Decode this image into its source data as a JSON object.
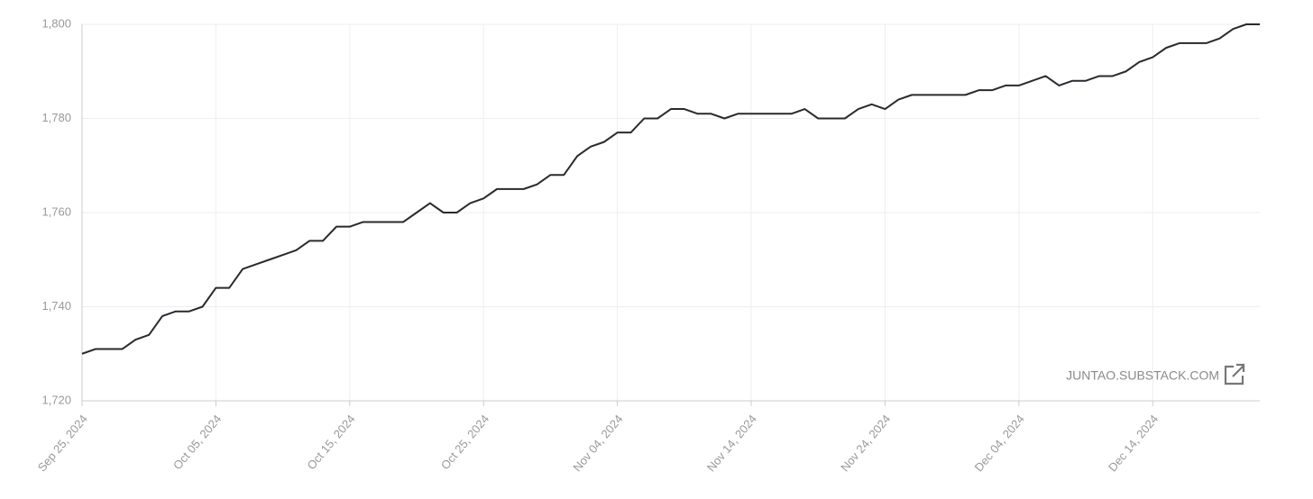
{
  "chart_data": {
    "type": "line",
    "x": [
      "2024-09-25",
      "2024-09-26",
      "2024-09-27",
      "2024-09-28",
      "2024-09-29",
      "2024-09-30",
      "2024-10-01",
      "2024-10-02",
      "2024-10-03",
      "2024-10-04",
      "2024-10-05",
      "2024-10-06",
      "2024-10-07",
      "2024-10-08",
      "2024-10-09",
      "2024-10-10",
      "2024-10-11",
      "2024-10-12",
      "2024-10-13",
      "2024-10-14",
      "2024-10-15",
      "2024-10-16",
      "2024-10-17",
      "2024-10-18",
      "2024-10-19",
      "2024-10-20",
      "2024-10-21",
      "2024-10-22",
      "2024-10-23",
      "2024-10-24",
      "2024-10-25",
      "2024-10-26",
      "2024-10-27",
      "2024-10-28",
      "2024-10-29",
      "2024-10-30",
      "2024-10-31",
      "2024-11-01",
      "2024-11-02",
      "2024-11-03",
      "2024-11-04",
      "2024-11-05",
      "2024-11-06",
      "2024-11-07",
      "2024-11-08",
      "2024-11-09",
      "2024-11-10",
      "2024-11-11",
      "2024-11-12",
      "2024-11-13",
      "2024-11-14",
      "2024-11-15",
      "2024-11-16",
      "2024-11-17",
      "2024-11-18",
      "2024-11-19",
      "2024-11-20",
      "2024-11-21",
      "2024-11-22",
      "2024-11-23",
      "2024-11-24",
      "2024-11-25",
      "2024-11-26",
      "2024-11-27",
      "2024-11-28",
      "2024-11-29",
      "2024-11-30",
      "2024-12-01",
      "2024-12-02",
      "2024-12-03",
      "2024-12-04",
      "2024-12-05",
      "2024-12-06",
      "2024-12-07",
      "2024-12-08",
      "2024-12-09",
      "2024-12-10",
      "2024-12-11",
      "2024-12-12",
      "2024-12-13",
      "2024-12-14",
      "2024-12-15",
      "2024-12-16",
      "2024-12-17",
      "2024-12-18",
      "2024-12-19",
      "2024-12-20",
      "2024-12-21",
      "2024-12-22"
    ],
    "series": [
      {
        "color": "#2a2a2e",
        "values": [
          1730,
          1731,
          1731,
          1731,
          1733,
          1734,
          1738,
          1739,
          1739,
          1740,
          1744,
          1744,
          1748,
          1749,
          1750,
          1751,
          1752,
          1754,
          1754,
          1757,
          1757,
          1758,
          1758,
          1758,
          1758,
          1760,
          1762,
          1760,
          1760,
          1762,
          1763,
          1765,
          1765,
          1765,
          1766,
          1768,
          1768,
          1772,
          1774,
          1775,
          1777,
          1777,
          1780,
          1780,
          1782,
          1782,
          1781,
          1781,
          1780,
          1781,
          1781,
          1781,
          1781,
          1781,
          1782,
          1780,
          1780,
          1780,
          1782,
          1783,
          1782,
          1784,
          1785,
          1785,
          1785,
          1785,
          1785,
          1786,
          1786,
          1787,
          1787,
          1788,
          1789,
          1787,
          1788,
          1788,
          1789,
          1789,
          1790,
          1792,
          1793,
          1795,
          1796,
          1796,
          1796,
          1797,
          1799,
          1800,
          1800
        ]
      }
    ],
    "xlim": [
      "2024-09-25",
      "2024-12-22"
    ],
    "xticks": [
      {
        "value": "2024-09-25",
        "label": "Sep 25, 2024"
      },
      {
        "value": "2024-10-05",
        "label": "Oct 05, 2024"
      },
      {
        "value": "2024-10-15",
        "label": "Oct 15, 2024"
      },
      {
        "value": "2024-10-25",
        "label": "Oct 25, 2024"
      },
      {
        "value": "2024-11-04",
        "label": "Nov 04, 2024"
      },
      {
        "value": "2024-11-14",
        "label": "Nov 14, 2024"
      },
      {
        "value": "2024-11-24",
        "label": "Nov 24, 2024"
      },
      {
        "value": "2024-12-04",
        "label": "Dec 04, 2024"
      },
      {
        "value": "2024-12-14",
        "label": "Dec 14, 2024"
      }
    ],
    "ylim": [
      1720,
      1800
    ],
    "yticks": [
      {
        "value": 1720,
        "label": "1,720"
      },
      {
        "value": 1740,
        "label": "1,740"
      },
      {
        "value": 1760,
        "label": "1,760"
      },
      {
        "value": 1780,
        "label": "1,780"
      },
      {
        "value": 1800,
        "label": "1,800"
      }
    ],
    "grid": true,
    "watermark": "JUNTAO.SUBSTACK.COM"
  }
}
